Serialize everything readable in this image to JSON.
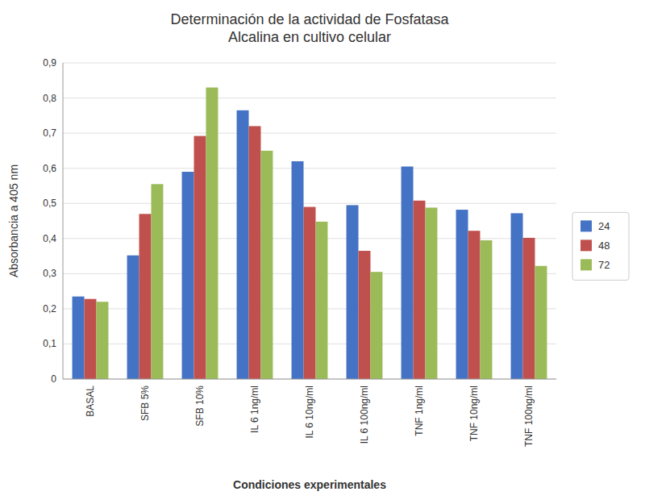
{
  "chart_data": {
    "type": "bar",
    "title": "Determinación de la actividad de Fosfatasa\nAlcalina en cultivo celular",
    "x_label": "Condiciones experimentales",
    "y_label": "Absorbancia a 405 nm",
    "categories": [
      "BASAL",
      "SFB 5%",
      "SFB 10%",
      "IL 6 1ng/ml",
      "IL 6 10ng/ml",
      "IL 6 100ng/ml",
      "TNF 1ng/ml",
      "TNF 10ng/ml",
      "TNF 100ng/ml"
    ],
    "series": [
      {
        "name": "24",
        "color": "#4472C4",
        "values": [
          0.235,
          0.352,
          0.59,
          0.765,
          0.62,
          0.495,
          0.605,
          0.482,
          0.472
        ]
      },
      {
        "name": "48",
        "color": "#C0504D",
        "values": [
          0.228,
          0.47,
          0.692,
          0.72,
          0.49,
          0.365,
          0.508,
          0.422,
          0.402
        ]
      },
      {
        "name": "72",
        "color": "#9BBB59",
        "values": [
          0.22,
          0.555,
          0.83,
          0.65,
          0.448,
          0.305,
          0.488,
          0.395,
          0.322
        ]
      }
    ],
    "ylim": [
      0,
      0.9
    ],
    "yticks": [
      0,
      {
        "value": 0.1,
        "label": "0,1"
      },
      {
        "value": 0.2,
        "label": "0,2"
      },
      {
        "value": 0.3,
        "label": "0,3"
      },
      {
        "value": 0.4,
        "label": "0,4"
      },
      {
        "value": 0.5,
        "label": "0,5"
      },
      {
        "value": 0.6,
        "label": "0,6"
      },
      {
        "value": 0.7,
        "label": "0,7"
      },
      {
        "value": 0.8,
        "label": "0,8"
      },
      {
        "value": 0.9,
        "label": "0,9"
      }
    ],
    "grid": true,
    "legend": "right"
  }
}
